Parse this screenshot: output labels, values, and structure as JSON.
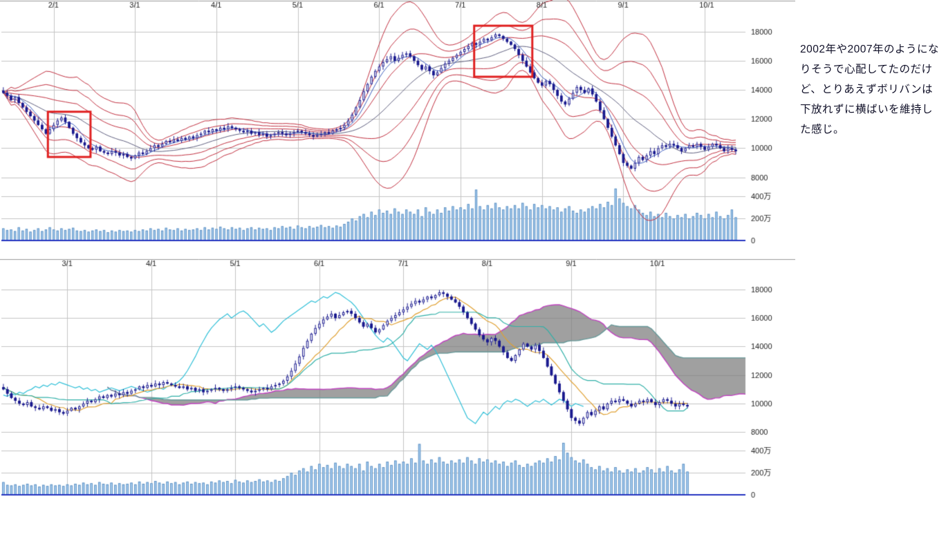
{
  "note": {
    "text": "2002年や2007年のようになりそうで心配してたのだけど、とりあえずボリバンは下放れずに横ばいを維持した感じ。"
  },
  "chart_data": [
    {
      "type": "candlestick",
      "name": "bollinger-band-daily-chart",
      "overlay": "bollinger",
      "title": "",
      "x_ticks": [
        {
          "label": "2/1",
          "index": 13
        },
        {
          "label": "3/1",
          "index": 34
        },
        {
          "label": "4/1",
          "index": 55
        },
        {
          "label": "5/1",
          "index": 76
        },
        {
          "label": "6/1",
          "index": 97
        },
        {
          "label": "7/1",
          "index": 118
        },
        {
          "label": "8/1",
          "index": 139
        },
        {
          "label": "9/1",
          "index": 160
        },
        {
          "label": "10/1",
          "index": 181
        }
      ],
      "y_ticks": [
        18000,
        16000,
        14000,
        12000,
        10000,
        8000
      ],
      "y_range": [
        6800,
        19500
      ],
      "volume_ticks": [
        {
          "label": "400万",
          "value": 400
        },
        {
          "label": "200万",
          "value": 200
        },
        {
          "label": "0",
          "value": 0
        }
      ],
      "closes": [
        13800,
        13600,
        13300,
        13500,
        13100,
        12800,
        12500,
        12200,
        11900,
        11600,
        11300,
        11000,
        11300,
        11600,
        11900,
        12100,
        11800,
        11400,
        11000,
        10700,
        10400,
        10200,
        10000,
        9900,
        10100,
        9800,
        9700,
        9600,
        9800,
        9700,
        9500,
        9600,
        9400,
        9300,
        9500,
        9700,
        9600,
        9800,
        10000,
        10200,
        10100,
        10300,
        10500,
        10400,
        10600,
        10500,
        10700,
        10600,
        10800,
        10700,
        10900,
        11000,
        11200,
        11100,
        11300,
        11200,
        11400,
        11300,
        11500,
        11400,
        11300,
        11200,
        11100,
        11200,
        11000,
        11100,
        10900,
        11000,
        10800,
        10900,
        11000,
        11100,
        11000,
        10900,
        11000,
        11100,
        11200,
        11100,
        11000,
        10900,
        10800,
        10900,
        11000,
        11100,
        11000,
        11200,
        11300,
        11400,
        11600,
        11900,
        12300,
        12800,
        13300,
        13900,
        14400,
        14900,
        15300,
        15600,
        15900,
        16100,
        16300,
        16000,
        16200,
        16400,
        16500,
        16300,
        16000,
        15700,
        15400,
        15600,
        15300,
        15000,
        15200,
        15500,
        15800,
        16000,
        16200,
        16400,
        16600,
        16800,
        17000,
        17200,
        17100,
        17300,
        17500,
        17400,
        17600,
        17800,
        17700,
        17500,
        17300,
        17100,
        16800,
        16400,
        16000,
        15600,
        15200,
        14800,
        14500,
        14300,
        14600,
        14400,
        14000,
        13600,
        13200,
        13000,
        13400,
        13800,
        14200,
        14000,
        13800,
        14100,
        13700,
        13200,
        12600,
        12000,
        11400,
        10800,
        10200,
        9600,
        9000,
        8800,
        8600,
        9000,
        9400,
        9200,
        9500,
        9800,
        9600,
        10000,
        10200,
        10100,
        10300,
        10200,
        10000,
        9800,
        10000,
        10200,
        10100,
        10300,
        10100,
        9900,
        10100,
        10300,
        10200,
        10000,
        9800,
        10000,
        9900,
        9800
      ],
      "volumes": [
        110,
        95,
        100,
        85,
        120,
        90,
        105,
        80,
        95,
        110,
        85,
        100,
        120,
        100,
        90,
        110,
        95,
        105,
        115,
        90,
        85,
        95,
        80,
        90,
        100,
        85,
        95,
        75,
        90,
        80,
        95,
        85,
        90,
        80,
        95,
        85,
        100,
        90,
        110,
        95,
        105,
        90,
        115,
        100,
        95,
        110,
        90,
        105,
        95,
        100,
        110,
        95,
        120,
        100,
        115,
        105,
        125,
        110,
        100,
        120,
        105,
        115,
        95,
        110,
        120,
        100,
        115,
        105,
        110,
        95,
        120,
        110,
        130,
        115,
        125,
        105,
        135,
        120,
        110,
        130,
        115,
        125,
        140,
        120,
        130,
        115,
        135,
        125,
        150,
        170,
        200,
        180,
        220,
        240,
        210,
        260,
        230,
        280,
        250,
        270,
        240,
        290,
        260,
        240,
        280,
        260,
        240,
        280,
        220,
        300,
        260,
        240,
        280,
        250,
        300,
        270,
        310,
        280,
        300,
        280,
        330,
        290,
        460,
        310,
        280,
        320,
        290,
        340,
        300,
        280,
        310,
        290,
        320,
        290,
        340,
        310,
        280,
        330,
        300,
        320,
        290,
        310,
        280,
        300,
        260,
        290,
        310,
        270,
        250,
        280,
        260,
        290,
        310,
        290,
        330,
        300,
        350,
        320,
        470,
        380,
        340,
        310,
        290,
        320,
        280,
        250,
        230,
        260,
        220,
        240,
        210,
        250,
        220,
        200,
        230,
        210,
        240,
        200,
        220,
        250,
        230,
        200,
        240,
        210,
        260,
        220,
        200,
        230,
        280,
        210
      ],
      "annotations": [
        {
          "name": "red-box-february",
          "start": 12,
          "end": 22,
          "top": 12500,
          "bottom": 9400
        },
        {
          "name": "red-box-july-peak",
          "start": 122,
          "end": 136,
          "top": 18400,
          "bottom": 14900
        }
      ],
      "colors": {
        "candle": "#1a1a8f",
        "band": "#c23040",
        "center_ma": "#606080",
        "fast_ma": "#4060c0",
        "volume_fill": "#a6cdf0",
        "volume_edge": "#5588bb",
        "baseline": "#2433c0",
        "annotation": "#e02020",
        "grid": "#c4c4c4",
        "label": "#222222"
      }
    },
    {
      "type": "candlestick",
      "name": "ichimoku-cloud-daily-chart",
      "overlay": "ichimoku",
      "source": 0,
      "start_index": 18,
      "x_ticks": [
        {
          "label": "3/1",
          "index": 16
        },
        {
          "label": "4/1",
          "index": 37
        },
        {
          "label": "5/1",
          "index": 58
        },
        {
          "label": "6/1",
          "index": 79
        },
        {
          "label": "7/1",
          "index": 100
        },
        {
          "label": "8/1",
          "index": 121
        },
        {
          "label": "9/1",
          "index": 142
        },
        {
          "label": "10/1",
          "index": 163
        }
      ],
      "y_ticks": [
        18000,
        16000,
        14000,
        12000,
        10000,
        8000
      ],
      "y_range": [
        6800,
        19500
      ],
      "volume_ticks": [
        {
          "label": "400万",
          "value": 400
        },
        {
          "label": "200万",
          "value": 200
        },
        {
          "label": "0",
          "value": 0
        }
      ],
      "colors": {
        "candle": "#1a1a8f",
        "tenkan": "#e0a030",
        "kijun": "#30b0a8",
        "chikou": "#30c0d8",
        "senkou_a": "#c040c0",
        "senkou_b": "#669999",
        "cloud_fill": "rgba(128,128,128,0.75)",
        "volume_fill": "#a6cdf0",
        "volume_edge": "#5588bb",
        "baseline": "#2433c0",
        "grid": "#c4c4c4",
        "label": "#222222"
      }
    }
  ]
}
